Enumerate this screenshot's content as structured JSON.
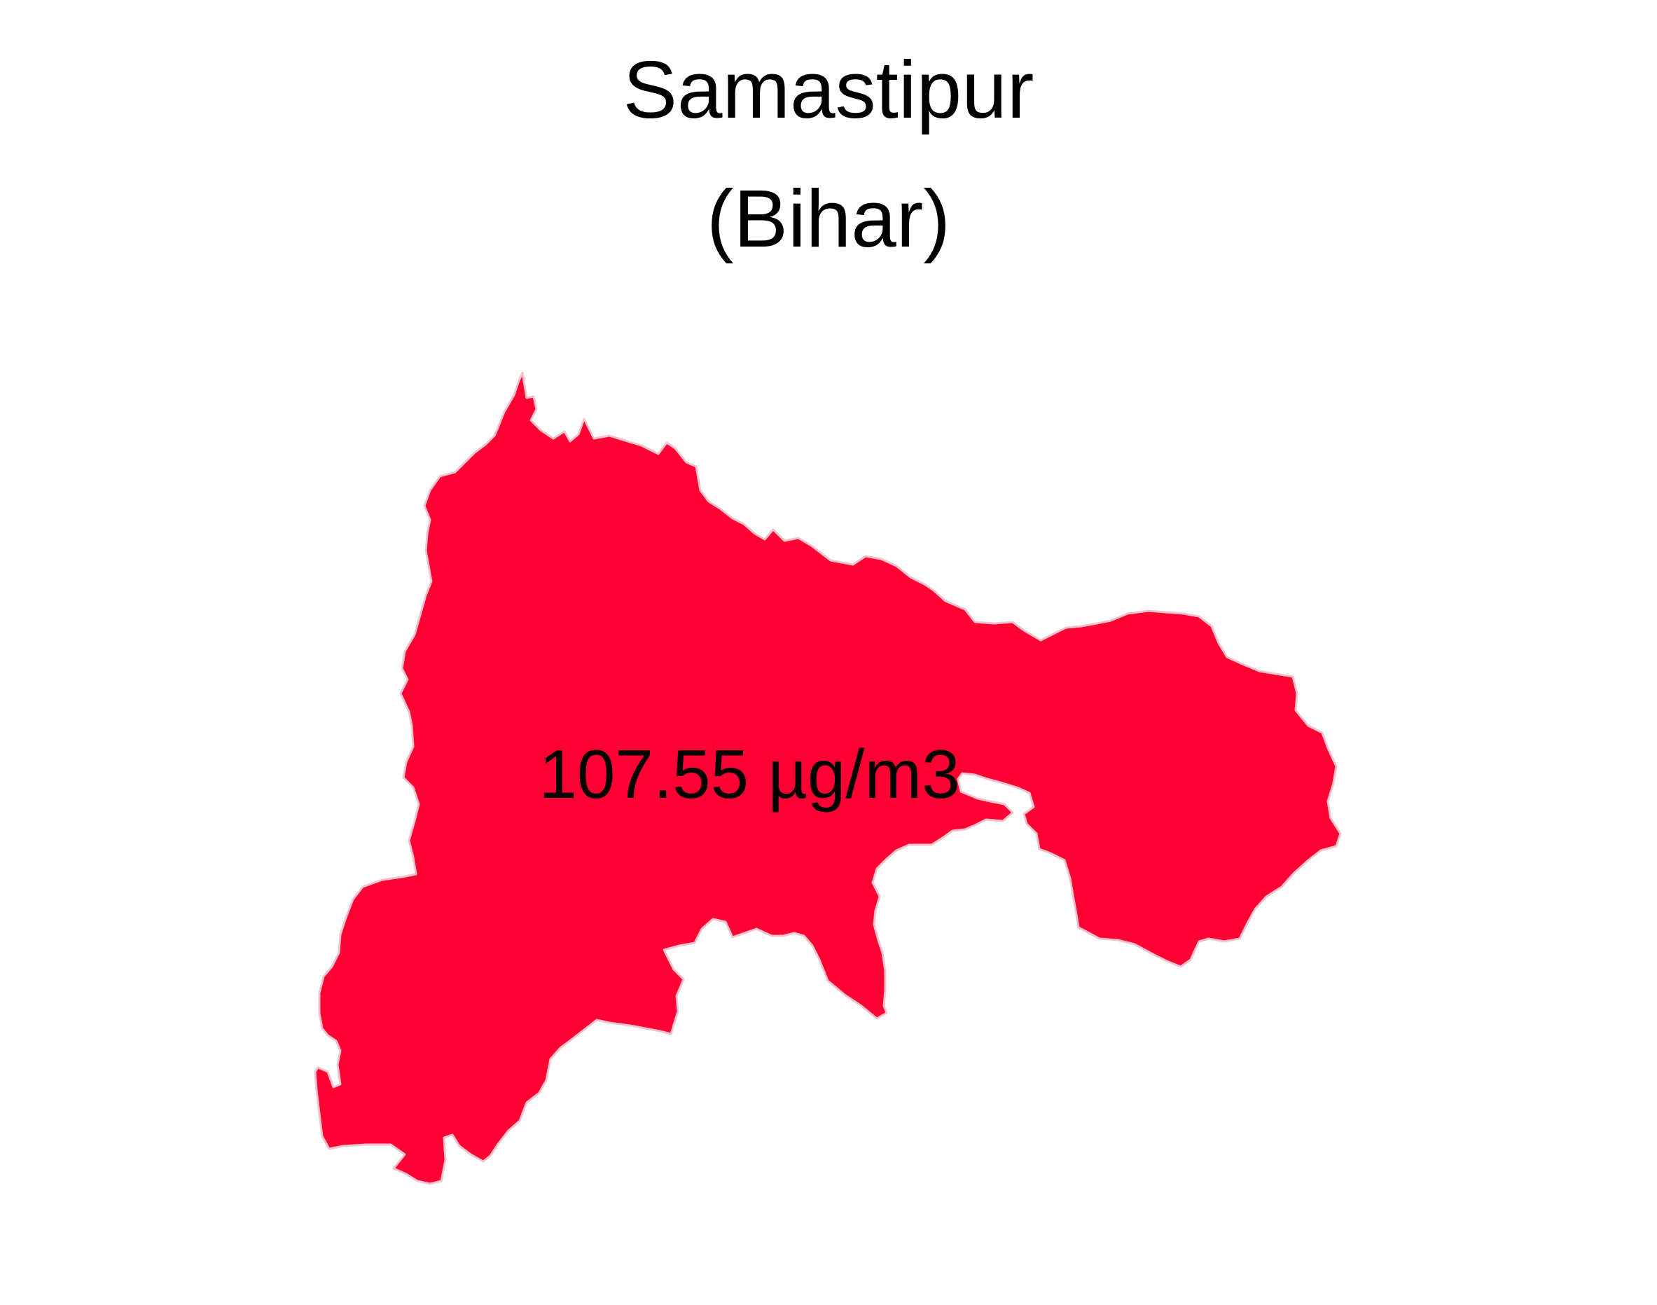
{
  "title": {
    "district": "Samastipur",
    "state": "(Bihar)"
  },
  "region": {
    "value_label": "107.55 µg/m3",
    "fill_color": "#FF0033",
    "border_color": "#F4C2CC"
  }
}
